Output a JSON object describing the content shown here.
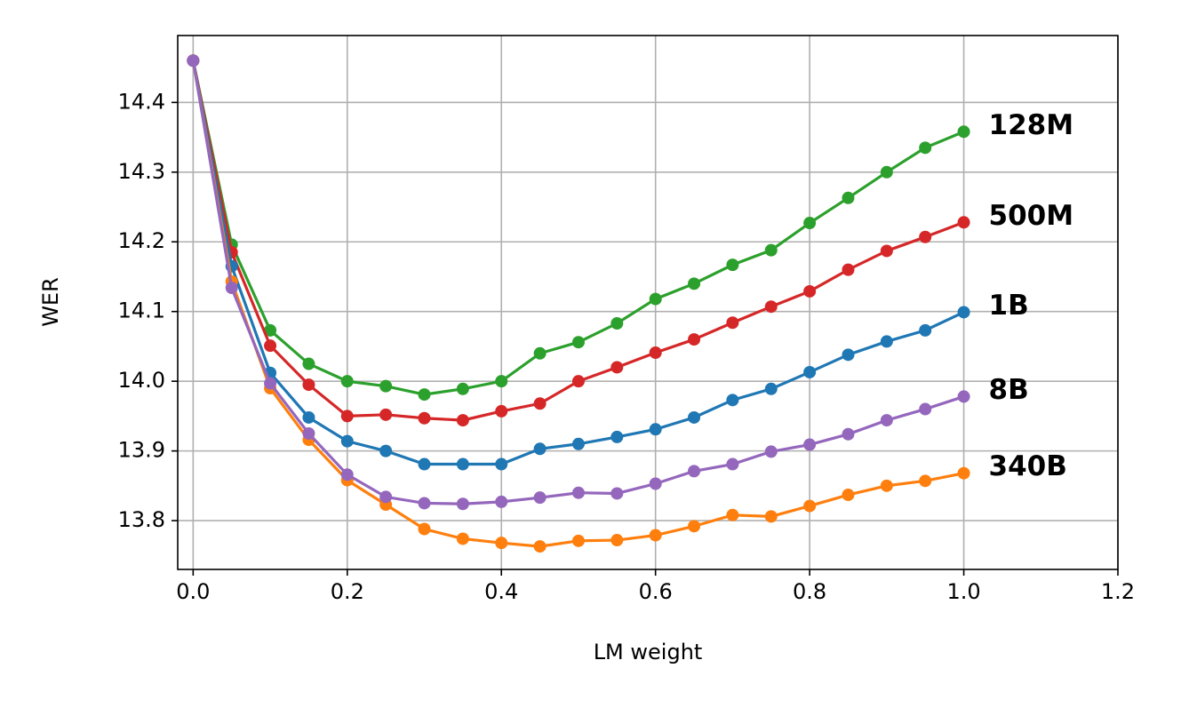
{
  "chart_data": {
    "type": "line",
    "x_label": "LM weight",
    "y_label": "WER",
    "x": [
      0,
      0.05,
      0.1,
      0.15,
      0.2,
      0.25,
      0.3,
      0.35,
      0.4,
      0.45,
      0.5,
      0.55,
      0.6,
      0.65,
      0.7,
      0.75,
      0.8,
      0.85,
      0.9,
      0.95,
      1
    ],
    "series": [
      {
        "name": "128M",
        "color": "#2ca02c",
        "values": [
          14.46,
          14.196,
          14.073,
          14.025,
          14.0,
          13.993,
          13.981,
          13.989,
          14.0,
          14.04,
          14.056,
          14.083,
          14.118,
          14.14,
          14.167,
          14.188,
          14.227,
          14.263,
          14.3,
          14.335,
          14.358
        ]
      },
      {
        "name": "500M",
        "color": "#d62728",
        "values": [
          14.46,
          14.185,
          14.051,
          13.995,
          13.95,
          13.952,
          13.947,
          13.944,
          13.957,
          13.968,
          14.0,
          14.02,
          14.041,
          14.06,
          14.084,
          14.107,
          14.129,
          14.16,
          14.187,
          14.207,
          14.228
        ]
      },
      {
        "name": "1B",
        "color": "#1f77b4",
        "values": [
          14.46,
          14.165,
          14.012,
          13.948,
          13.914,
          13.9,
          13.881,
          13.881,
          13.881,
          13.903,
          13.91,
          13.92,
          13.931,
          13.948,
          13.973,
          13.989,
          14.013,
          14.038,
          14.057,
          14.073,
          14.099
        ]
      },
      {
        "name": "340B",
        "color": "#ff7f0e",
        "values": [
          14.46,
          14.143,
          13.99,
          13.916,
          13.858,
          13.823,
          13.788,
          13.774,
          13.768,
          13.763,
          13.771,
          13.772,
          13.779,
          13.792,
          13.808,
          13.806,
          13.821,
          13.837,
          13.85,
          13.857,
          13.868
        ]
      },
      {
        "name": "8B",
        "color": "#9467bd",
        "values": [
          14.46,
          14.134,
          13.997,
          13.925,
          13.866,
          13.834,
          13.825,
          13.824,
          13.827,
          13.833,
          13.84,
          13.839,
          13.853,
          13.871,
          13.881,
          13.899,
          13.909,
          13.924,
          13.944,
          13.96,
          13.978
        ]
      }
    ],
    "xlim": [
      -0.02,
      1.2
    ],
    "ylim": [
      13.73,
      14.496
    ],
    "xticks": [
      {
        "value": 0,
        "label": "0.0"
      },
      0.2,
      0.4,
      0.6,
      0.8,
      {
        "value": 1,
        "label": "1.0"
      },
      1.2
    ],
    "yticks": [
      13.8,
      13.9,
      {
        "value": 14,
        "label": "14.0"
      },
      14.1,
      14.2,
      14.3,
      14.4
    ],
    "grid": true
  }
}
